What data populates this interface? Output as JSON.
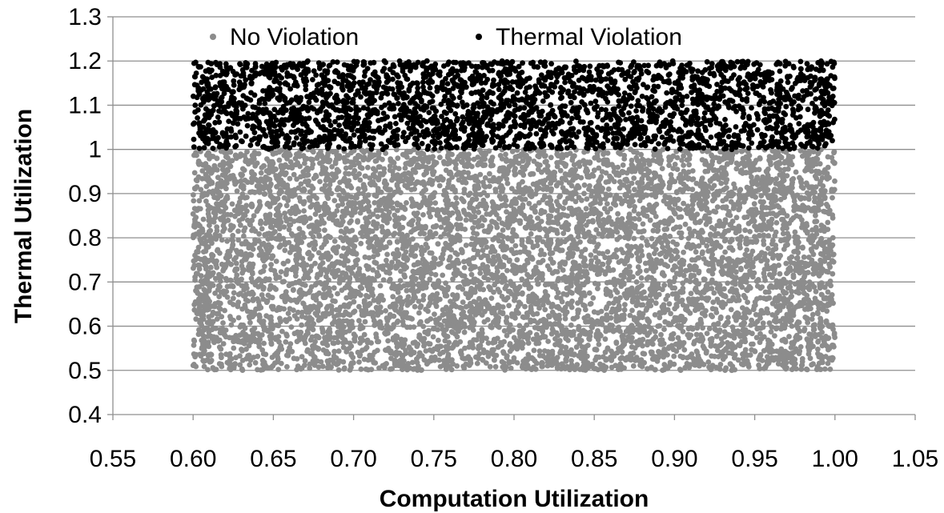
{
  "chart_data": {
    "type": "scatter",
    "xlabel": "Computation Utilization",
    "ylabel": "Thermal Utilization",
    "xlim": [
      0.55,
      1.05
    ],
    "ylim": [
      0.4,
      1.3
    ],
    "x_ticks": [
      "0.55",
      "0.60",
      "0.65",
      "0.70",
      "0.75",
      "0.80",
      "0.85",
      "0.90",
      "0.95",
      "1.00",
      "1.05"
    ],
    "y_ticks": [
      "0.4",
      "0.5",
      "0.6",
      "0.7",
      "0.8",
      "0.9",
      "1",
      "1.1",
      "1.2",
      "1.3"
    ],
    "grid": "horizontal",
    "legend_position": "top",
    "series": [
      {
        "name": "No Violation",
        "color": "#8c8c8c",
        "x_range": [
          0.6,
          1.0
        ],
        "y_range": [
          0.5,
          1.0
        ],
        "distribution": "uniform",
        "approx_points": 7000
      },
      {
        "name": "Thermal Violation",
        "color": "#000000",
        "x_range": [
          0.6,
          1.0
        ],
        "y_range": [
          1.0,
          1.2
        ],
        "distribution": "uniform",
        "approx_points": 2800
      }
    ]
  }
}
